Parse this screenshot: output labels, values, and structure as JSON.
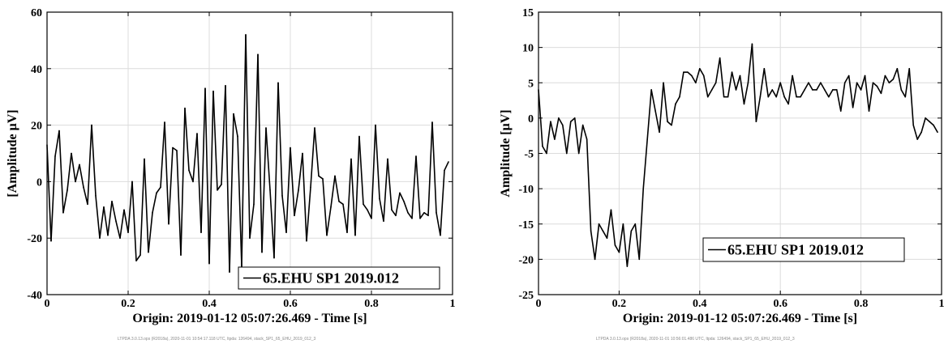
{
  "chart_data": [
    {
      "type": "line",
      "xlabel": "Origin: 2019-01-12 05:07:26.469 - Time  [s]",
      "ylabel": "[Amplitude μV]",
      "xlim": [
        0,
        1
      ],
      "ylim": [
        -40,
        60
      ],
      "xticks": [
        "0",
        "0.2",
        "0.4",
        "0.6",
        "0.8",
        "1"
      ],
      "yticks": [
        "-40",
        "-20",
        "0",
        "20",
        "40",
        "60"
      ],
      "grid": true,
      "legend_position": "bottom-right",
      "footer": "LTPDA 3.0.13.ops (R2018a), 2020-11-01 10:54:17.118 UTC, ltpda: 126494, stack_SP1_65_EHU_2019_012_3",
      "line_color": "#000000",
      "series": [
        {
          "name": "65.EHU SP1 2019.012",
          "x": [
            0.0,
            0.01,
            0.02,
            0.03,
            0.04,
            0.05,
            0.06,
            0.07,
            0.08,
            0.09,
            0.1,
            0.11,
            0.12,
            0.13,
            0.14,
            0.15,
            0.16,
            0.17,
            0.18,
            0.19,
            0.2,
            0.21,
            0.22,
            0.23,
            0.24,
            0.25,
            0.26,
            0.27,
            0.28,
            0.29,
            0.3,
            0.31,
            0.32,
            0.33,
            0.34,
            0.35,
            0.36,
            0.37,
            0.38,
            0.39,
            0.4,
            0.41,
            0.42,
            0.43,
            0.44,
            0.45,
            0.46,
            0.47,
            0.48,
            0.49,
            0.5,
            0.51,
            0.52,
            0.53,
            0.54,
            0.55,
            0.56,
            0.57,
            0.58,
            0.59,
            0.6,
            0.61,
            0.62,
            0.63,
            0.64,
            0.65,
            0.66,
            0.67,
            0.68,
            0.69,
            0.7,
            0.71,
            0.72,
            0.73,
            0.74,
            0.75,
            0.76,
            0.77,
            0.78,
            0.79,
            0.8,
            0.81,
            0.82,
            0.83,
            0.84,
            0.85,
            0.86,
            0.87,
            0.88,
            0.89,
            0.9,
            0.91,
            0.92,
            0.93,
            0.94,
            0.95,
            0.96,
            0.97,
            0.98,
            0.99
          ],
          "values": [
            13,
            -21,
            9,
            18,
            -11,
            -3,
            10,
            0,
            6,
            -2,
            -8,
            20,
            -5,
            -20,
            -9,
            -19,
            -7,
            -14,
            -20,
            -10,
            -18,
            0,
            -28,
            -26,
            8,
            -25,
            -11,
            -4,
            -2,
            21,
            -15,
            12,
            11,
            -26,
            26,
            4,
            0,
            17,
            -18,
            33,
            -29,
            32,
            -3,
            -1,
            34,
            -32,
            24,
            16,
            -30,
            52,
            -20,
            -8,
            45,
            -25,
            19,
            -3,
            -27,
            35,
            -5,
            -18,
            12,
            -12,
            -3,
            10,
            -21,
            -2,
            19,
            2,
            1,
            -19,
            -9,
            2,
            -7,
            -8,
            -18,
            8,
            -19,
            16,
            -8,
            -10,
            -13,
            20,
            -6,
            -14,
            8,
            -10,
            -12,
            -4,
            -7,
            -11,
            -13,
            9,
            -13,
            -11,
            -12,
            21,
            -11,
            -19,
            4,
            7
          ]
        }
      ]
    },
    {
      "type": "line",
      "xlabel": "Origin: 2019-01-12 05:07:26.469 - Time  [s]",
      "ylabel": "Amplitude  [μV]",
      "xlim": [
        0,
        1
      ],
      "ylim": [
        -25,
        15
      ],
      "xticks": [
        "0",
        "0.2",
        "0.4",
        "0.6",
        "0.8",
        "1"
      ],
      "yticks": [
        "-25",
        "-20",
        "-15",
        "-10",
        "-5",
        "0",
        "5",
        "10",
        "15"
      ],
      "grid": true,
      "legend_position": "bottom-right",
      "footer": "LTPDA 3.0.13.ops (R2018a), 2020-11-01 10:56:01.486 UTC, ltpda: 126494, stack_SP1_65_EHU_2019_012_3",
      "line_color": "#000000",
      "series": [
        {
          "name": "65.EHU SP1 2019.012",
          "x": [
            0.0,
            0.01,
            0.02,
            0.03,
            0.04,
            0.05,
            0.06,
            0.07,
            0.08,
            0.09,
            0.1,
            0.11,
            0.12,
            0.13,
            0.14,
            0.15,
            0.16,
            0.17,
            0.18,
            0.19,
            0.2,
            0.21,
            0.22,
            0.23,
            0.24,
            0.25,
            0.26,
            0.27,
            0.28,
            0.29,
            0.3,
            0.31,
            0.32,
            0.33,
            0.34,
            0.35,
            0.36,
            0.37,
            0.38,
            0.39,
            0.4,
            0.41,
            0.42,
            0.43,
            0.44,
            0.45,
            0.46,
            0.47,
            0.48,
            0.49,
            0.5,
            0.51,
            0.52,
            0.53,
            0.54,
            0.55,
            0.56,
            0.57,
            0.58,
            0.59,
            0.6,
            0.61,
            0.62,
            0.63,
            0.64,
            0.65,
            0.66,
            0.67,
            0.68,
            0.69,
            0.7,
            0.71,
            0.72,
            0.73,
            0.74,
            0.75,
            0.76,
            0.77,
            0.78,
            0.79,
            0.8,
            0.81,
            0.82,
            0.83,
            0.84,
            0.85,
            0.86,
            0.87,
            0.88,
            0.89,
            0.9,
            0.91,
            0.92,
            0.93,
            0.94,
            0.95,
            0.96,
            0.97,
            0.98,
            0.99
          ],
          "values": [
            4,
            -4,
            -5,
            -0.5,
            -3,
            0,
            -1,
            -5,
            -0.5,
            0,
            -5,
            -1,
            -3,
            -16,
            -20,
            -15,
            -16,
            -17,
            -13,
            -18,
            -19,
            -15,
            -21,
            -16,
            -15,
            -20,
            -10,
            -3,
            4,
            1,
            -2,
            5,
            -0.5,
            -1,
            2,
            3,
            6.5,
            6.5,
            6,
            5,
            7,
            6,
            3,
            4,
            5,
            8.5,
            3,
            3,
            6.5,
            4,
            6,
            2,
            5,
            10.5,
            -0.5,
            3,
            7,
            3,
            4,
            3,
            5,
            3,
            2,
            6,
            3,
            3,
            4,
            5,
            4,
            4,
            5,
            4,
            3,
            4,
            4,
            1,
            5,
            6,
            1.5,
            5,
            4,
            6,
            1,
            5,
            4.5,
            3.5,
            6,
            5,
            5.5,
            7,
            4,
            3,
            7,
            -1,
            -3,
            -2,
            0,
            -0.5,
            -1,
            -2
          ]
        }
      ]
    }
  ]
}
